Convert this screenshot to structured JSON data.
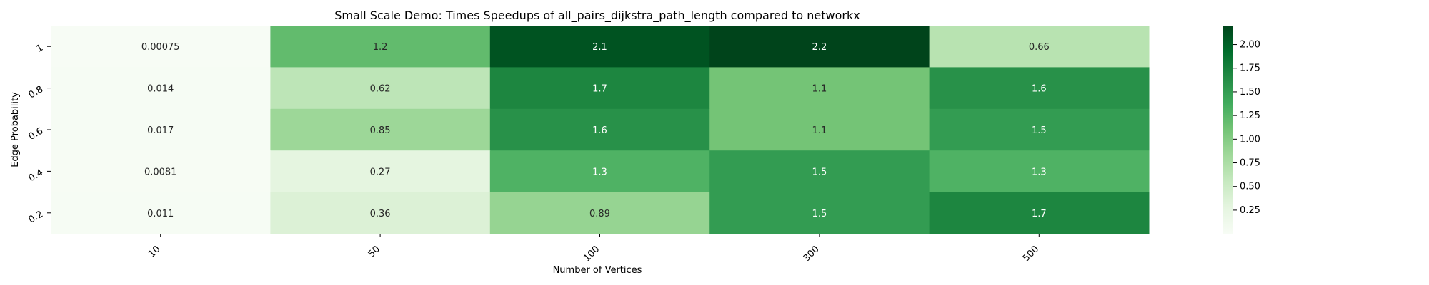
{
  "chart_data": {
    "type": "heatmap",
    "title": "Small Scale Demo: Times Speedups of all_pairs_dijkstra_path_length compared to networkx",
    "xlabel": "Number of Vertices",
    "ylabel": "Edge Probability",
    "x_categories": [
      "10",
      "50",
      "100",
      "300",
      "500"
    ],
    "y_categories": [
      "1",
      "0.8",
      "0.6",
      "0.4",
      "0.2"
    ],
    "values": [
      [
        0.00075,
        1.2,
        2.1,
        2.2,
        0.66
      ],
      [
        0.014,
        0.62,
        1.7,
        1.1,
        1.6
      ],
      [
        0.017,
        0.85,
        1.6,
        1.1,
        1.5
      ],
      [
        0.0081,
        0.27,
        1.3,
        1.5,
        1.3
      ],
      [
        0.011,
        0.36,
        0.89,
        1.5,
        1.7
      ]
    ],
    "value_labels": [
      [
        "0.00075",
        "1.2",
        "2.1",
        "2.2",
        "0.66"
      ],
      [
        "0.014",
        "0.62",
        "1.7",
        "1.1",
        "1.6"
      ],
      [
        "0.017",
        "0.85",
        "1.6",
        "1.1",
        "1.5"
      ],
      [
        "0.0081",
        "0.27",
        "1.3",
        "1.5",
        "1.3"
      ],
      [
        "0.011",
        "0.36",
        "0.89",
        "1.5",
        "1.7"
      ]
    ],
    "colormap": "Greens",
    "color_range": [
      0.00075,
      2.2
    ],
    "colorbar_ticks": [
      "0.25",
      "0.50",
      "0.75",
      "1.00",
      "1.25",
      "1.50",
      "1.75",
      "2.00"
    ],
    "grid": false
  }
}
